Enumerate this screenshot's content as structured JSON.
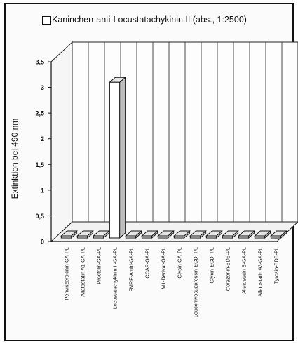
{
  "chart_data": {
    "type": "bar",
    "legend": "Kaninchen-anti-Locustatachykinin II (abs., 1:2500)",
    "ylabel": "Extinktion bei 490 nm",
    "ylim": [
      0,
      3.5
    ],
    "yticks": [
      "0",
      "0,5",
      "1",
      "1,5",
      "2",
      "2,5",
      "3",
      "3,5"
    ],
    "categories": [
      "Periviszerokinin-GA-PL",
      "Allatostatin A1-GA-PL",
      "Proctolin-GA-PL",
      "Locustatachykinin II-GA-PL",
      "FMRF-Amid-GA-PL",
      "CCAP-GA-PL",
      "M1-Derivat-GA-PL",
      "Glycin-GA-PL",
      "Leucomyosuppressin-ECDI-PL",
      "Glycin-ECDI-PL",
      "Corazonin-BDB-PL",
      "Allatostatin B-GA-PL",
      "Allatostatin A3-GA-PL",
      "Tyrosin-BDB-PL"
    ],
    "values": [
      0.03,
      0.03,
      0.03,
      3.1,
      0.03,
      0.03,
      0.03,
      0.03,
      0.03,
      0.03,
      0.03,
      0.03,
      0.03,
      0.03
    ],
    "three_d": true
  }
}
